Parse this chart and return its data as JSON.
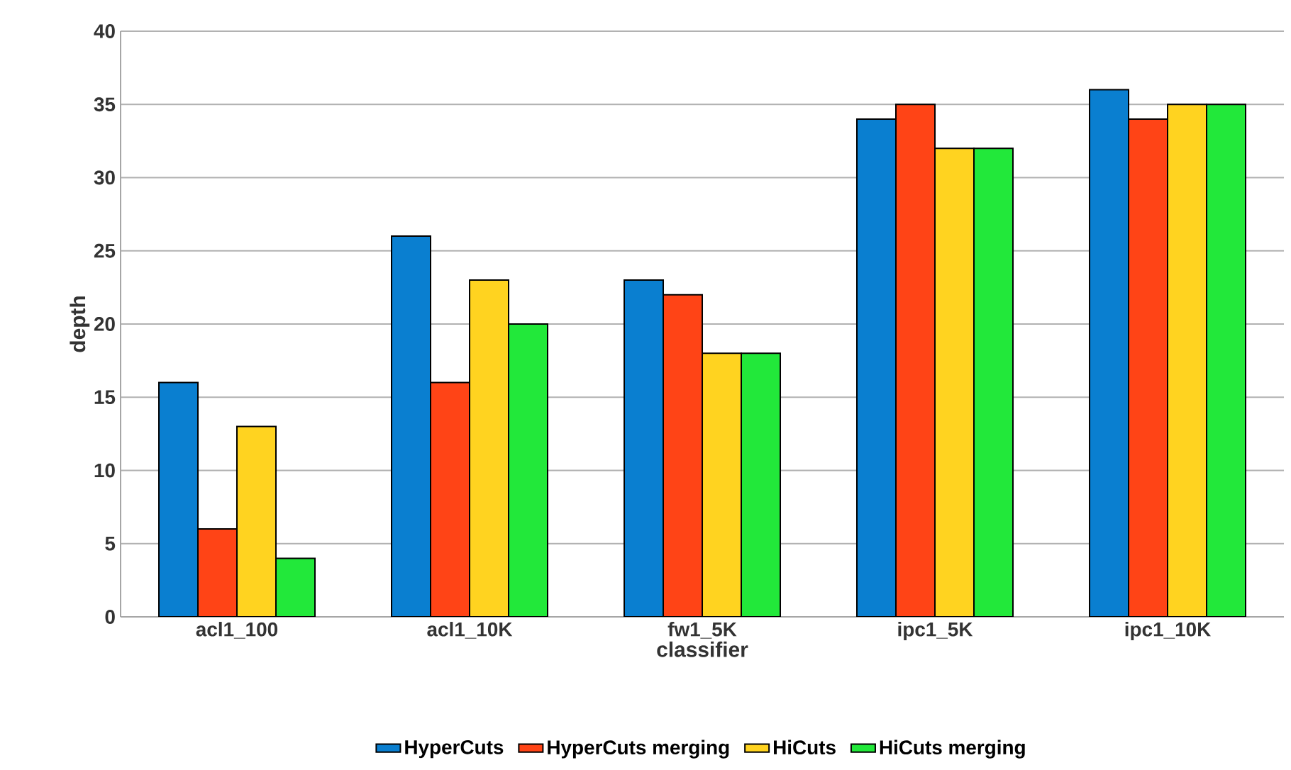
{
  "chart_data": {
    "type": "bar",
    "xlabel": "classifier",
    "ylabel": "depth",
    "categories": [
      "acl1_100",
      "acl1_10K",
      "fw1_5K",
      "ipc1_5K",
      "ipc1_10K"
    ],
    "series": [
      {
        "name": "HyperCuts",
        "color": "#0a7fd0",
        "values": [
          16,
          26,
          23,
          34,
          36
        ]
      },
      {
        "name": "HyperCuts merging",
        "color": "#ff4416",
        "values": [
          6,
          16,
          22,
          35,
          34
        ]
      },
      {
        "name": "HiCuts",
        "color": "#ffd320",
        "values": [
          13,
          23,
          18,
          32,
          35
        ]
      },
      {
        "name": "HiCuts merging",
        "color": "#22e83a",
        "values": [
          4,
          20,
          18,
          32,
          35
        ]
      }
    ],
    "ylim": [
      0,
      40
    ],
    "yticks": [
      0,
      5,
      10,
      15,
      20,
      25,
      30,
      35,
      40
    ],
    "grid": "y",
    "legend": "bottom"
  }
}
